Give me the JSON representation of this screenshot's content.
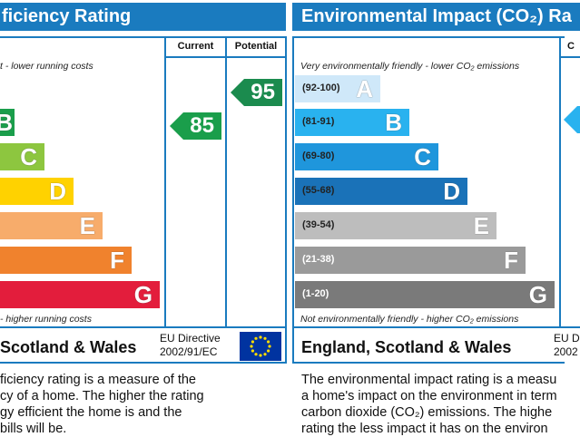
{
  "left_panel": {
    "title": "ficiency Rating",
    "col_current": "Current",
    "col_potential": "Potential",
    "top_note": "t - lower running costs",
    "bottom_note": "- higher running costs",
    "bands": [
      {
        "letter": "B",
        "color": "#1a9e4b"
      },
      {
        "letter": "C",
        "color": "#8dc63f"
      },
      {
        "letter": "D",
        "color": "#ffd200"
      },
      {
        "letter": "E",
        "color": "#f7ac6b"
      },
      {
        "letter": "F",
        "color": "#f0822d"
      },
      {
        "letter": "G",
        "color": "#e31d3c"
      }
    ],
    "current_value": "85",
    "current_color": "#1a9e4b",
    "potential_value": "95",
    "potential_color": "#1b8b4e",
    "footer_name": "Scotland & Wales",
    "directive_line1": "EU Directive",
    "directive_line2": "2002/91/EC",
    "description": [
      "ficiency rating is a measure of the",
      "cy of a home. The higher the rating",
      "gy efficient the home is and the",
      "bills will be."
    ]
  },
  "right_panel": {
    "title": "Environmental Impact (CO₂) Ra",
    "col_current": "C",
    "top_note": "Very environmentally friendly - lower CO₂ emissions",
    "bottom_note": "Not environmentally friendly - higher CO₂ emissions",
    "bands": [
      {
        "range": "(92-100)",
        "letter": "A",
        "color": "#cfe8f9"
      },
      {
        "range": "(81-91)",
        "letter": "B",
        "color": "#29b2ef"
      },
      {
        "range": "(69-80)",
        "letter": "C",
        "color": "#1f96dc"
      },
      {
        "range": "(55-68)",
        "letter": "D",
        "color": "#1a72b8"
      },
      {
        "range": "(39-54)",
        "letter": "E",
        "color": "#bdbdbd"
      },
      {
        "range": "(21-38)",
        "letter": "F",
        "color": "#9a9a9a"
      },
      {
        "range": "(1-20)",
        "letter": "G",
        "color": "#7a7a7a"
      }
    ],
    "footer_name": "England, Scotland & Wales",
    "directive_line1": "EU Dir",
    "directive_line2": "2002",
    "description": [
      "The environmental impact rating is a measu",
      "a home's impact on the environment in term",
      "carbon dioxide (CO₂) emissions. The highe",
      "rating the less impact it has on the environ"
    ]
  }
}
